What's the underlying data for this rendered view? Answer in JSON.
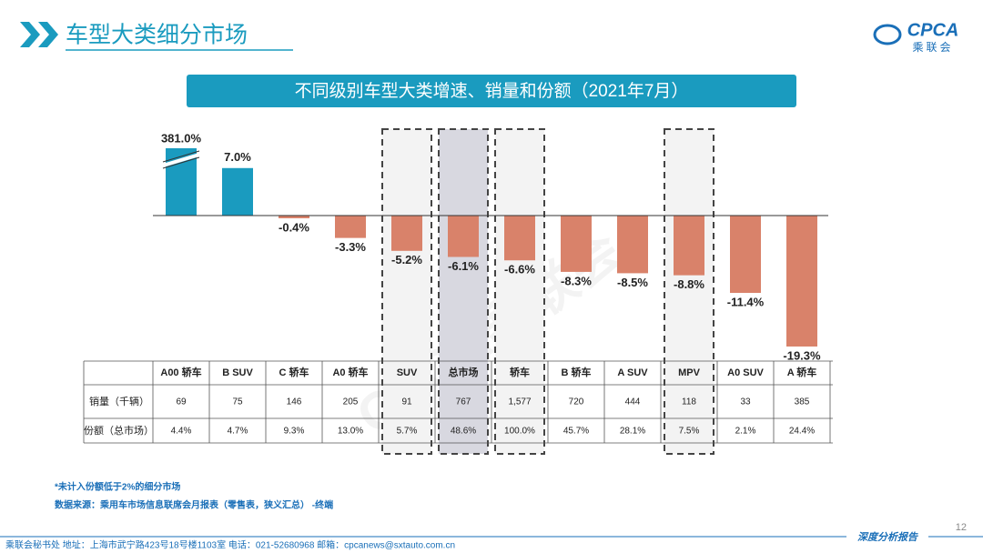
{
  "header": {
    "title": "车型大类细分市场",
    "logo_text": "CPCA",
    "logo_subtext": "乘联会"
  },
  "watermark": "CPCA乘联会",
  "chart_data": {
    "type": "bar",
    "title": "不同级别车型大类增速、销量和份额（2021年7月）",
    "categories": [
      "A00 轿车",
      "B SUV",
      "C 轿车",
      "A0 轿车",
      "SUV",
      "总市场",
      "轿车",
      "B 轿车",
      "A SUV",
      "MPV",
      "A0 SUV",
      "A 轿车"
    ],
    "values": [
      381.0,
      7.0,
      -0.4,
      -3.3,
      -5.2,
      -6.1,
      -6.6,
      -8.3,
      -8.5,
      -8.8,
      -11.4,
      -19.3
    ],
    "value_labels": [
      "381.0%",
      "7.0%",
      "-0.4%",
      "-3.3%",
      "-5.2%",
      "-6.1%",
      "-6.6%",
      "-8.3%",
      "-8.5%",
      "-8.8%",
      "-11.4%",
      "-19.3%"
    ],
    "colors": {
      "positive": "#1a9bbf",
      "negative": "#d9826a"
    }
  },
  "table": {
    "row_labels": [
      "销量（千辆）",
      "份额（总市场）"
    ],
    "rows": [
      [
        "69",
        "75",
        "146",
        "205",
        "91",
        "767",
        "1,577",
        "720",
        "444",
        "118",
        "33",
        "385"
      ],
      [
        "4.4%",
        "4.7%",
        "9.3%",
        "13.0%",
        "5.7%",
        "48.6%",
        "100.0%",
        "45.7%",
        "28.1%",
        "7.5%",
        "2.1%",
        "24.4%"
      ]
    ]
  },
  "notes": [
    "*未计入份额低于2%的细分市场",
    "数据来源：乘用车市场信息联席会月报表（零售表，狭义汇总）  -终端"
  ],
  "footer": {
    "contact": "乘联会秘书处   地址：上海市武宁路423号18号楼1103室   电话：021-52680968   邮箱：cpcanews@sxtauto.com.cn",
    "report": "深度分析报告",
    "page": "12"
  }
}
